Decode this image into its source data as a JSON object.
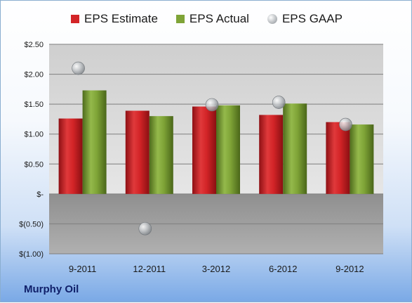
{
  "company": "Murphy Oil",
  "colors": {
    "estimate": "#d32427",
    "actual": "#7fa437",
    "gaap": "#b9bcc0",
    "plot_positive": "#d9d9d9",
    "plot_negative": "#9a9a9a"
  },
  "legend": {
    "estimate": "EPS Estimate",
    "actual": "EPS Actual",
    "gaap": "EPS GAAP"
  },
  "chart_data": {
    "type": "bar",
    "title": "",
    "xlabel": "",
    "ylabel": "",
    "categories": [
      "9-2011",
      "12-2011",
      "3-2012",
      "6-2012",
      "9-2012"
    ],
    "series": [
      {
        "name": "EPS Estimate",
        "type": "bar",
        "values": [
          1.26,
          1.39,
          1.46,
          1.32,
          1.2
        ]
      },
      {
        "name": "EPS Actual",
        "type": "bar",
        "values": [
          1.73,
          1.3,
          1.48,
          1.51,
          1.16
        ]
      },
      {
        "name": "EPS GAAP",
        "type": "scatter",
        "values": [
          2.1,
          -0.58,
          1.49,
          1.53,
          1.16
        ]
      }
    ],
    "ylim": [
      -1.0,
      2.5
    ],
    "yticks": [
      2.5,
      2.0,
      1.5,
      1.0,
      0.5,
      0.0,
      -0.5,
      -1.0
    ],
    "ytick_labels": [
      "$2.50",
      "$2.00",
      "$1.50",
      "$1.00",
      "$0.50",
      "$-",
      "$(0.50)",
      "$(1.00)"
    ],
    "grid": true,
    "legend_position": "top"
  }
}
